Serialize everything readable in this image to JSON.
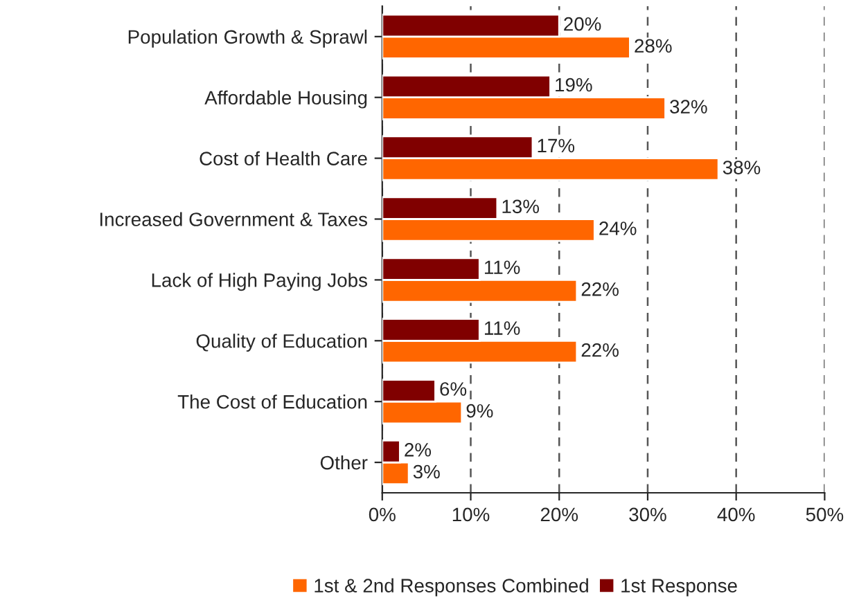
{
  "chart_data": {
    "type": "bar",
    "orientation": "horizontal",
    "categories": [
      "Population Growth & Sprawl",
      "Affordable Housing",
      "Cost of Health Care",
      "Increased Government & Taxes",
      "Lack of High Paying Jobs",
      "Quality of Education",
      "The Cost of Education",
      "Other"
    ],
    "series": [
      {
        "name": "1st & 2nd Responses Combined",
        "color": "#ff6600",
        "values": [
          28,
          32,
          38,
          24,
          22,
          22,
          9,
          3
        ],
        "value_labels": [
          "28%",
          "32%",
          "38%",
          "24%",
          "22%",
          "22%",
          "9%",
          "3%"
        ]
      },
      {
        "name": "1st Response",
        "color": "#800000",
        "values": [
          20,
          19,
          17,
          13,
          11,
          11,
          6,
          2
        ],
        "value_labels": [
          "20%",
          "19%",
          "17%",
          "13%",
          "11%",
          "11%",
          "6%",
          "2%"
        ]
      }
    ],
    "xlim": [
      0,
      50
    ],
    "xticks": [
      {
        "value": 0,
        "label": "0%"
      },
      {
        "value": 10,
        "label": "10%"
      },
      {
        "value": 20,
        "label": "20%"
      },
      {
        "value": 30,
        "label": "30%"
      },
      {
        "value": 40,
        "label": "40%"
      },
      {
        "value": 50,
        "label": "50%"
      }
    ],
    "grid": "x",
    "line_style": "dashed",
    "legend": "bottom"
  }
}
